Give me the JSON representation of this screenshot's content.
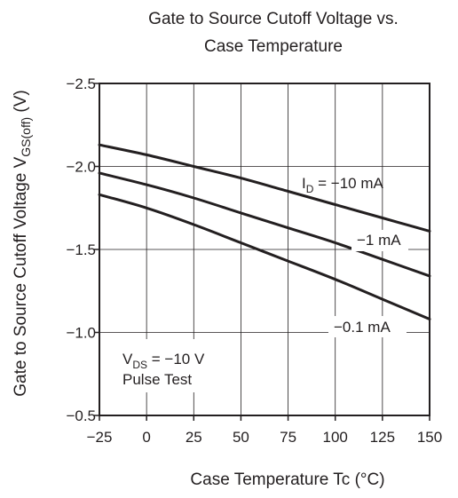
{
  "chart_data": {
    "type": "line",
    "title_lines": [
      "Gate to Source Cutoff Voltage vs.",
      "Case Temperature"
    ],
    "xlabel": "Case Temperature   Tc   (°C)",
    "ylabel": {
      "main": "Gate to Source Cutoff Voltage   V",
      "sub": "GS(off)",
      "unit": "  (V)"
    },
    "xlim": [
      -25,
      150
    ],
    "ylim": [
      -0.5,
      -2.5
    ],
    "x_ticks": [
      -25,
      0,
      25,
      50,
      75,
      100,
      125,
      150
    ],
    "x_tick_labels": [
      "−25",
      "0",
      "25",
      "50",
      "75",
      "100",
      "125",
      "150"
    ],
    "y_ticks": [
      -0.5,
      -1.0,
      -1.5,
      -2.0,
      -2.5
    ],
    "y_tick_labels": [
      "−0.5",
      "−1.0",
      "−1.5",
      "−2.0",
      "−2.5"
    ],
    "grid": true,
    "series": [
      {
        "name": "I_D = −10 mA",
        "label": {
          "main": "I",
          "sub": "D",
          "rest": " = −10 mA"
        },
        "x": [
          -25,
          0,
          25,
          50,
          75,
          100,
          125,
          150
        ],
        "y": [
          -2.13,
          -2.07,
          -2.0,
          -1.93,
          -1.85,
          -1.77,
          -1.69,
          -1.61
        ]
      },
      {
        "name": "−1 mA",
        "label": {
          "main": "−1 mA",
          "sub": "",
          "rest": ""
        },
        "x": [
          -25,
          0,
          25,
          50,
          75,
          100,
          125,
          150
        ],
        "y": [
          -1.96,
          -1.89,
          -1.81,
          -1.72,
          -1.63,
          -1.54,
          -1.44,
          -1.34
        ]
      },
      {
        "name": "−0.1 mA",
        "label": {
          "main": "−0.1 mA",
          "sub": "",
          "rest": ""
        },
        "x": [
          -25,
          0,
          25,
          50,
          75,
          100,
          125,
          150
        ],
        "y": [
          -1.83,
          -1.75,
          -1.65,
          -1.54,
          -1.43,
          -1.32,
          -1.2,
          -1.08
        ]
      }
    ],
    "annotation": {
      "line1": {
        "main": "V",
        "sub": "DS",
        "rest": " = −10 V"
      },
      "line2": "Pulse Test"
    }
  }
}
